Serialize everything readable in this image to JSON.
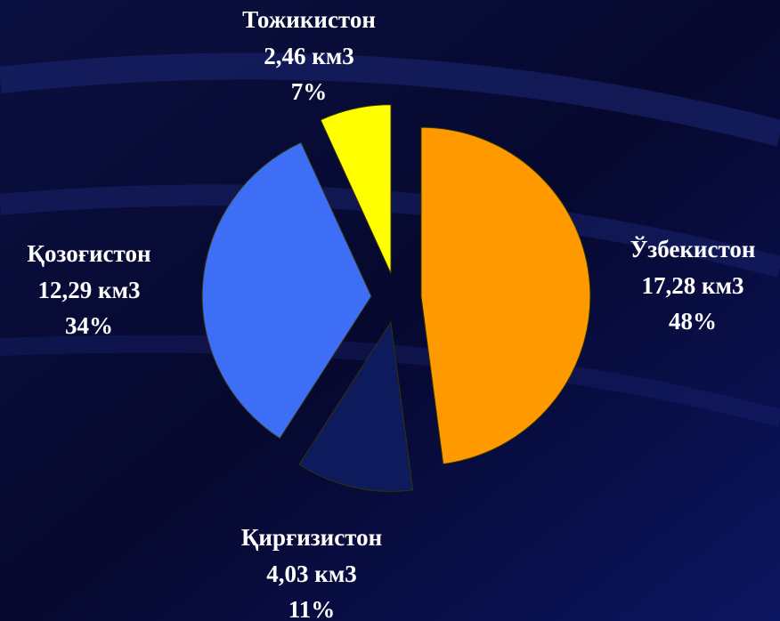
{
  "chart_data": {
    "type": "pie",
    "categories": [
      "Ўзбекистон",
      "Қирғизистон",
      "Қозоғистон",
      "Тожикистон"
    ],
    "values": [
      17.28,
      4.03,
      12.29,
      2.46
    ],
    "value_labels": [
      "17,28 км3",
      "4,03 км3",
      "12,29 км3",
      "2,46 км3"
    ],
    "percentages": [
      48,
      11,
      34,
      7
    ],
    "percentage_labels": [
      "48%",
      "11%",
      "34%",
      "7%"
    ],
    "colors": [
      "#ff9900",
      "#0d1a5c",
      "#3d6ef5",
      "#ffff00"
    ]
  }
}
